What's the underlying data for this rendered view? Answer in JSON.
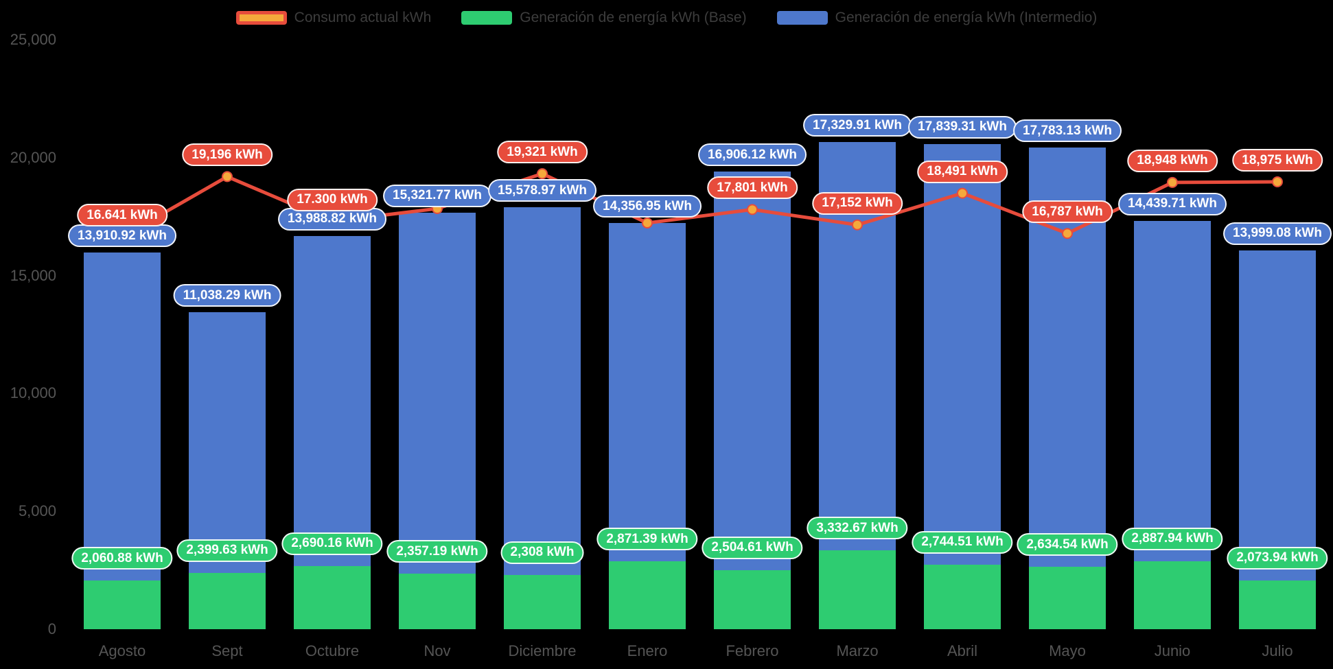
{
  "colors": {
    "background": "#000000",
    "bar_base": "#2ecc71",
    "bar_intermedio": "#4e78cc",
    "line_consumo": "#e74c3c",
    "marker_fill": "#f5a93b",
    "pill_text": "#ffffff",
    "axis_text": "#555555",
    "legend_text": "#3d3d3d"
  },
  "legend": {
    "items": [
      {
        "label": "Consumo actual kWh",
        "swatch": "line"
      },
      {
        "label": "Generación de energía kWh (Base)",
        "swatch": "bar-base"
      },
      {
        "label": "Generación de energía kWh (Intermedio)",
        "swatch": "bar-intermedio"
      }
    ]
  },
  "axes": {
    "y_ticks": [
      {
        "label": "25,000",
        "value": 25000
      },
      {
        "label": "20,000",
        "value": 20000
      },
      {
        "label": "15,000",
        "value": 15000
      },
      {
        "label": "10,000",
        "value": 10000
      },
      {
        "label": "5,000",
        "value": 5000
      },
      {
        "label": "0",
        "value": 0
      }
    ]
  },
  "chart_data": {
    "type": "bar",
    "subtype": "stacked-bars-with-line-overlay",
    "title": "",
    "xlabel": "",
    "ylabel": "",
    "ylim": [
      0,
      25000
    ],
    "grid": false,
    "legend_position": "top",
    "categories": [
      "Agosto",
      "Sept",
      "Octubre",
      "Nov",
      "Diciembre",
      "Enero",
      "Febrero",
      "Marzo",
      "Abril",
      "Mayo",
      "Junio",
      "Julio"
    ],
    "series": [
      {
        "name": "Generación de energía kWh (Base)",
        "type": "bar",
        "stack": "energia",
        "values": [
          2060.88,
          2399.63,
          2690.16,
          2357.19,
          2308,
          2871.39,
          2504.61,
          3332.67,
          2744.51,
          2634.54,
          2887.94,
          2073.94
        ],
        "labels": [
          "2,060.88 kWh",
          "2,399.63 kWh",
          "2,690.16 kWh",
          "2,357.19 kWh",
          "2,308 kWh",
          "2,871.39 kWh",
          "2,504.61 kWh",
          "3,332.67 kWh",
          "2,744.51 kWh",
          "2,634.54 kWh",
          "2,887.94 kWh",
          "2,073.94 kWh"
        ]
      },
      {
        "name": "Generación de energía kWh (Intermedio)",
        "type": "bar",
        "stack": "energia",
        "values": [
          13910.92,
          11038.29,
          13988.82,
          15321.77,
          15578.97,
          14356.95,
          16906.12,
          17329.91,
          17839.31,
          17783.13,
          14439.71,
          13999.08
        ],
        "labels": [
          "13,910.92 kWh",
          "11,038.29 kWh",
          "13,988.82 kWh",
          "15,321.77 kWh",
          "15,578.97 kWh",
          "14,356.95 kWh",
          "16,906.12 kWh",
          "17,329.91 kWh",
          "17,839.31 kWh",
          "17,783.13 kWh",
          "14,439.71 kWh",
          "13,999.08 kWh"
        ]
      },
      {
        "name": "Consumo actual kWh",
        "type": "line",
        "values": [
          16641,
          19196,
          17300,
          17840,
          19321,
          17230,
          17801,
          17152,
          18491,
          16787,
          18948,
          18975
        ],
        "labels": [
          "16.641 kWh",
          "19,196 kWh",
          "17.300 kWh",
          "",
          "19,321 kWh",
          "",
          "17,801 kWh",
          "17,152 kWh",
          "18,491 kWh",
          "16,787 kWh",
          "18,948 kWh",
          "18,975 kWh"
        ]
      }
    ]
  }
}
